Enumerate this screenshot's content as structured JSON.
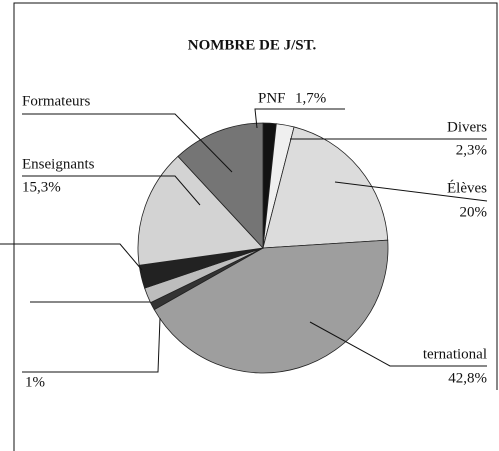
{
  "chart_data": {
    "type": "pie",
    "title": "NOMBRE DE J/ST.",
    "categories": [
      "PNF",
      "Divers",
      "Élèves",
      "ternational",
      null,
      null,
      null,
      "Enseignants",
      "Formateurs"
    ],
    "values": [
      1.7,
      2.3,
      20,
      42.8,
      1,
      2,
      3,
      15.3,
      11.9
    ],
    "value_labels": [
      "1,7%",
      "2,3%",
      "20%",
      "42,8%",
      "1%",
      null,
      null,
      "15,3%",
      null
    ],
    "colors": [
      "#111111",
      "#efefef",
      "#dcdcdc",
      "#9e9e9e",
      "#333333",
      "#bdbdbd",
      "#222222",
      "#d3d3d3",
      "#757575"
    ]
  }
}
